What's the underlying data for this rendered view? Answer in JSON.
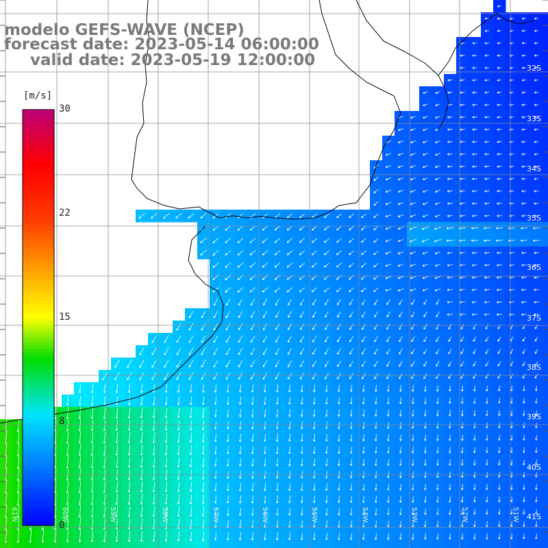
{
  "title": {
    "line1": "modelo GEFS-WAVE (NCEP)",
    "line2": "forecast date: 2023-05-14 06:00:00",
    "line3": "valid date: 2023-05-19 12:00:00"
  },
  "colorbar": {
    "unit": "[m/s]",
    "ticks": [
      "30",
      "22",
      "15",
      "8",
      "0"
    ],
    "tick_values": [
      30,
      22,
      15,
      8,
      0
    ],
    "min": 0,
    "max": 30
  },
  "map": {
    "lat_labels": [
      "32S",
      "33S",
      "34S",
      "35S",
      "36S",
      "37S",
      "38S",
      "39S",
      "40S",
      "41S"
    ],
    "lon_labels": [
      "61W",
      "60W",
      "59W",
      "58W",
      "57W",
      "56W",
      "55W",
      "54W",
      "53W",
      "52W",
      "51W"
    ]
  },
  "colors": {
    "land": "#ffffff",
    "grid": "#8c8c8c",
    "coast": "#000000",
    "title_text": "#7a7a7a",
    "arrow": "#ffffff"
  }
}
